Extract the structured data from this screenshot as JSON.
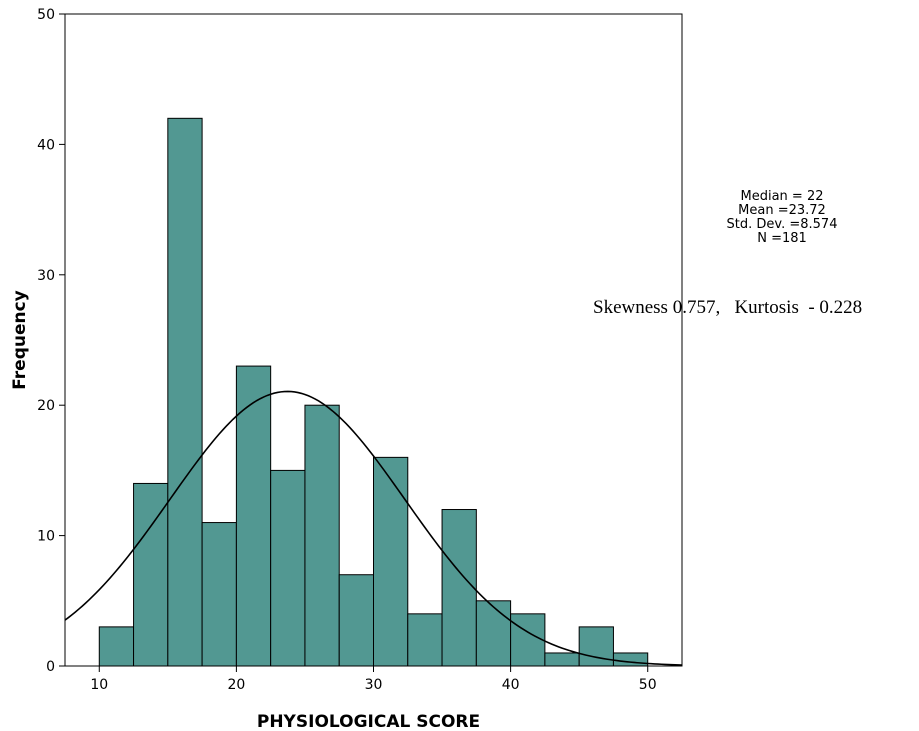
{
  "chart_data": {
    "type": "bar",
    "subtype": "histogram",
    "xlabel": "PHYSIOLOGICAL SCORE",
    "ylabel": "Frequency",
    "xlim": [
      7.5,
      52.5
    ],
    "ylim": [
      0,
      50
    ],
    "xticks": [
      10,
      20,
      30,
      40,
      50
    ],
    "yticks": [
      0,
      10,
      20,
      30,
      40,
      50
    ],
    "bin_width": 2.5,
    "bins": [
      {
        "start": 10.0,
        "end": 12.5,
        "count": 3
      },
      {
        "start": 12.5,
        "end": 15.0,
        "count": 14
      },
      {
        "start": 15.0,
        "end": 17.5,
        "count": 42
      },
      {
        "start": 17.5,
        "end": 20.0,
        "count": 11
      },
      {
        "start": 20.0,
        "end": 22.5,
        "count": 23
      },
      {
        "start": 22.5,
        "end": 25.0,
        "count": 15
      },
      {
        "start": 25.0,
        "end": 27.5,
        "count": 20
      },
      {
        "start": 27.5,
        "end": 30.0,
        "count": 7
      },
      {
        "start": 30.0,
        "end": 32.5,
        "count": 16
      },
      {
        "start": 32.5,
        "end": 35.0,
        "count": 4
      },
      {
        "start": 35.0,
        "end": 37.5,
        "count": 12
      },
      {
        "start": 37.5,
        "end": 40.0,
        "count": 5
      },
      {
        "start": 40.0,
        "end": 42.5,
        "count": 4
      },
      {
        "start": 42.5,
        "end": 45.0,
        "count": 1
      },
      {
        "start": 45.0,
        "end": 47.5,
        "count": 3
      },
      {
        "start": 47.5,
        "end": 50.0,
        "count": 1
      }
    ],
    "normal_curve": {
      "mean": 23.72,
      "sd": 8.574,
      "n": 181
    },
    "bar_color": "#529892",
    "grid": false,
    "legend": "none"
  },
  "stats": {
    "median": "Median = 22",
    "mean": "Mean =23.72",
    "std": "Std. Dev. =8.574",
    "n": "N =181"
  },
  "annotation": "Skewness 0.757,   Kurtosis  - 0.228"
}
